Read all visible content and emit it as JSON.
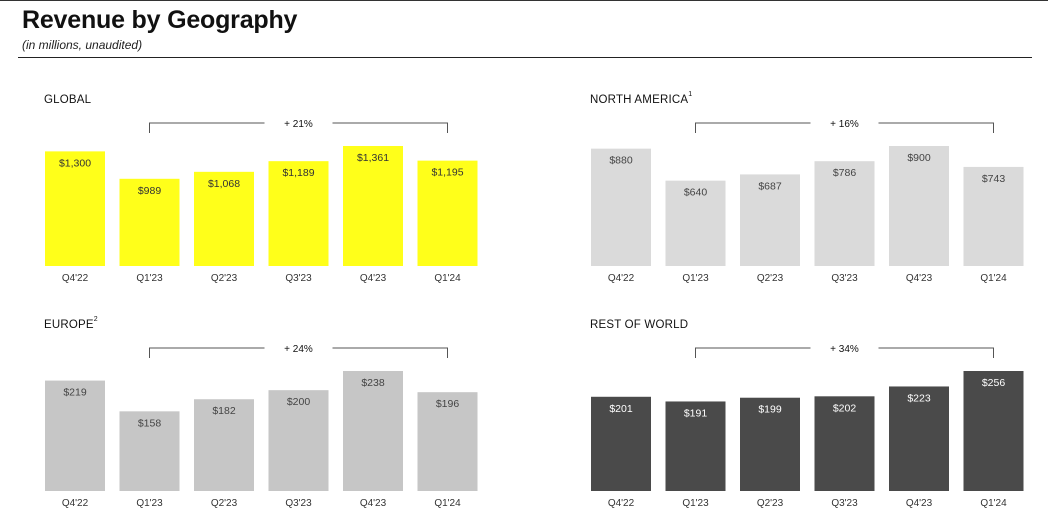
{
  "title": "Revenue by Geography",
  "subtitle": "(in millions, unaudited)",
  "colors": {
    "global": "#ffff1a",
    "north_america": "#dadada",
    "europe": "#c6c6c6",
    "rest_of_world": "#4a4a4a"
  },
  "chart_data": [
    {
      "type": "bar",
      "title": "GLOBAL",
      "title_sup": "",
      "categories": [
        "Q4'22",
        "Q1'23",
        "Q2'23",
        "Q3'23",
        "Q4'23",
        "Q1'24"
      ],
      "values": [
        1300,
        989,
        1068,
        1189,
        1361,
        1195
      ],
      "value_labels": [
        "$1,300",
        "$989",
        "$1,068",
        "$1,189",
        "$1,361",
        "$1,195"
      ],
      "growth_annotation": "+ 21%",
      "color": "#ffff1a",
      "label_color": "#333333"
    },
    {
      "type": "bar",
      "title": "NORTH AMERICA",
      "title_sup": "1",
      "categories": [
        "Q4'22",
        "Q1'23",
        "Q2'23",
        "Q3'23",
        "Q4'23",
        "Q1'24"
      ],
      "values": [
        880,
        640,
        687,
        786,
        900,
        743
      ],
      "value_labels": [
        "$880",
        "$640",
        "$687",
        "$786",
        "$900",
        "$743"
      ],
      "growth_annotation": "+ 16%",
      "color": "#dadada",
      "label_color": "#444444"
    },
    {
      "type": "bar",
      "title": "EUROPE",
      "title_sup": "2",
      "categories": [
        "Q4'22",
        "Q1'23",
        "Q2'23",
        "Q3'23",
        "Q4'23",
        "Q1'24"
      ],
      "values": [
        219,
        158,
        182,
        200,
        238,
        196
      ],
      "value_labels": [
        "$219",
        "$158",
        "$182",
        "$200",
        "$238",
        "$196"
      ],
      "growth_annotation": "+ 24%",
      "color": "#c6c6c6",
      "label_color": "#444444"
    },
    {
      "type": "bar",
      "title": "REST OF WORLD",
      "title_sup": "",
      "categories": [
        "Q4'22",
        "Q1'23",
        "Q2'23",
        "Q3'23",
        "Q4'23",
        "Q1'24"
      ],
      "values": [
        201,
        191,
        199,
        202,
        223,
        256
      ],
      "value_labels": [
        "$201",
        "$191",
        "$199",
        "$202",
        "$223",
        "$256"
      ],
      "growth_annotation": "+ 34%",
      "color": "#4a4a4a",
      "label_color": "#ffffff"
    }
  ]
}
